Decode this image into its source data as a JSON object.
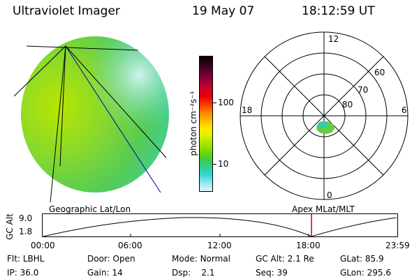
{
  "header": {
    "instrument": "Ultraviolet Imager",
    "date": "19 May 07",
    "time": "18:12:59 UT"
  },
  "earth_view": {
    "label": "Geographic Lat/Lon"
  },
  "colorbar": {
    "unit_label": "photon cm⁻²s⁻¹",
    "ticks": [
      "100",
      "10"
    ],
    "colors": [
      "#000000",
      "#33001a",
      "#660033",
      "#990033",
      "#cc0033",
      "#e60000",
      "#ff3300",
      "#ff8000",
      "#ffb300",
      "#ffe600",
      "#d9f200",
      "#a6e600",
      "#73d900",
      "#40cc40",
      "#33cc99",
      "#33d9d9",
      "#99e6f2",
      "#e6f2f5"
    ]
  },
  "polar_plot": {
    "label": "Apex MLat/MLT",
    "mlt_labels": {
      "top": "12",
      "left": "18",
      "right": "6",
      "bottom": "0"
    },
    "lat_labels": [
      "60",
      "70",
      "80"
    ]
  },
  "altitude_plot": {
    "ylabel": "GC Alt",
    "yticks": [
      "9.0",
      "1.8"
    ],
    "xticks": [
      "00:00",
      "06:00",
      "12:00",
      "18:00",
      "23:59"
    ],
    "marker_color": "#cc0000"
  },
  "info": [
    [
      {
        "k": "Flt:",
        "v": "LBHL"
      },
      {
        "k": "Door:",
        "v": "Open"
      },
      {
        "k": "Mode:",
        "v": "Normal"
      },
      {
        "k": "GC Alt:",
        "v": "2.1 Re"
      },
      {
        "k": "GLat:",
        "v": "85.9"
      }
    ],
    [
      {
        "k": "IP:",
        "v": "36.0"
      },
      {
        "k": "Gain:",
        "v": "14"
      },
      {
        "k": "Dsp:",
        "v": "2.1"
      },
      {
        "k": "Seq:",
        "v": "39"
      },
      {
        "k": "GLon:",
        "v": "295.6"
      }
    ]
  ]
}
